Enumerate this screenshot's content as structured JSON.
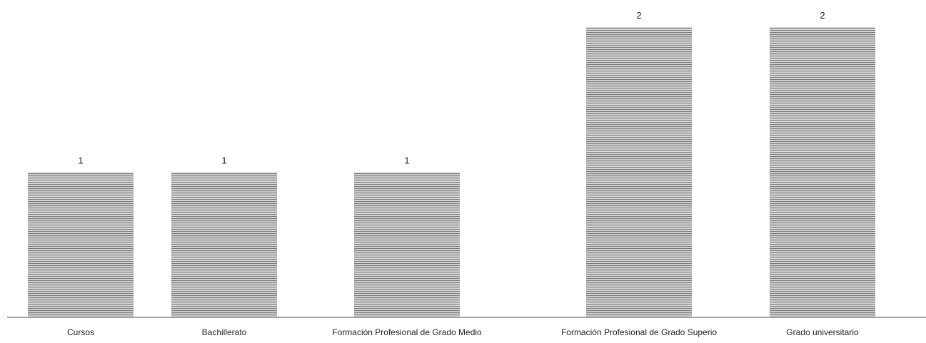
{
  "chart_data": {
    "type": "bar",
    "categories": [
      "Cursos",
      "Bachillerato",
      "Formación Profesional de Grado Medio",
      "Formación Profesional de Grado Superio",
      "Grado universitario"
    ],
    "values": [
      1,
      1,
      1,
      2,
      2
    ],
    "data_labels": [
      "1",
      "1",
      "1",
      "2",
      "2"
    ],
    "title": "",
    "xlabel": "",
    "ylabel": "",
    "ylim": [
      0,
      2
    ],
    "grid": false,
    "legend": "none",
    "bar_pattern": "horizontal-stripes",
    "colors": {
      "bar_stripe": "#7a7a7a",
      "bar_fill": "#d9d9d9",
      "axis": "#888888"
    }
  }
}
